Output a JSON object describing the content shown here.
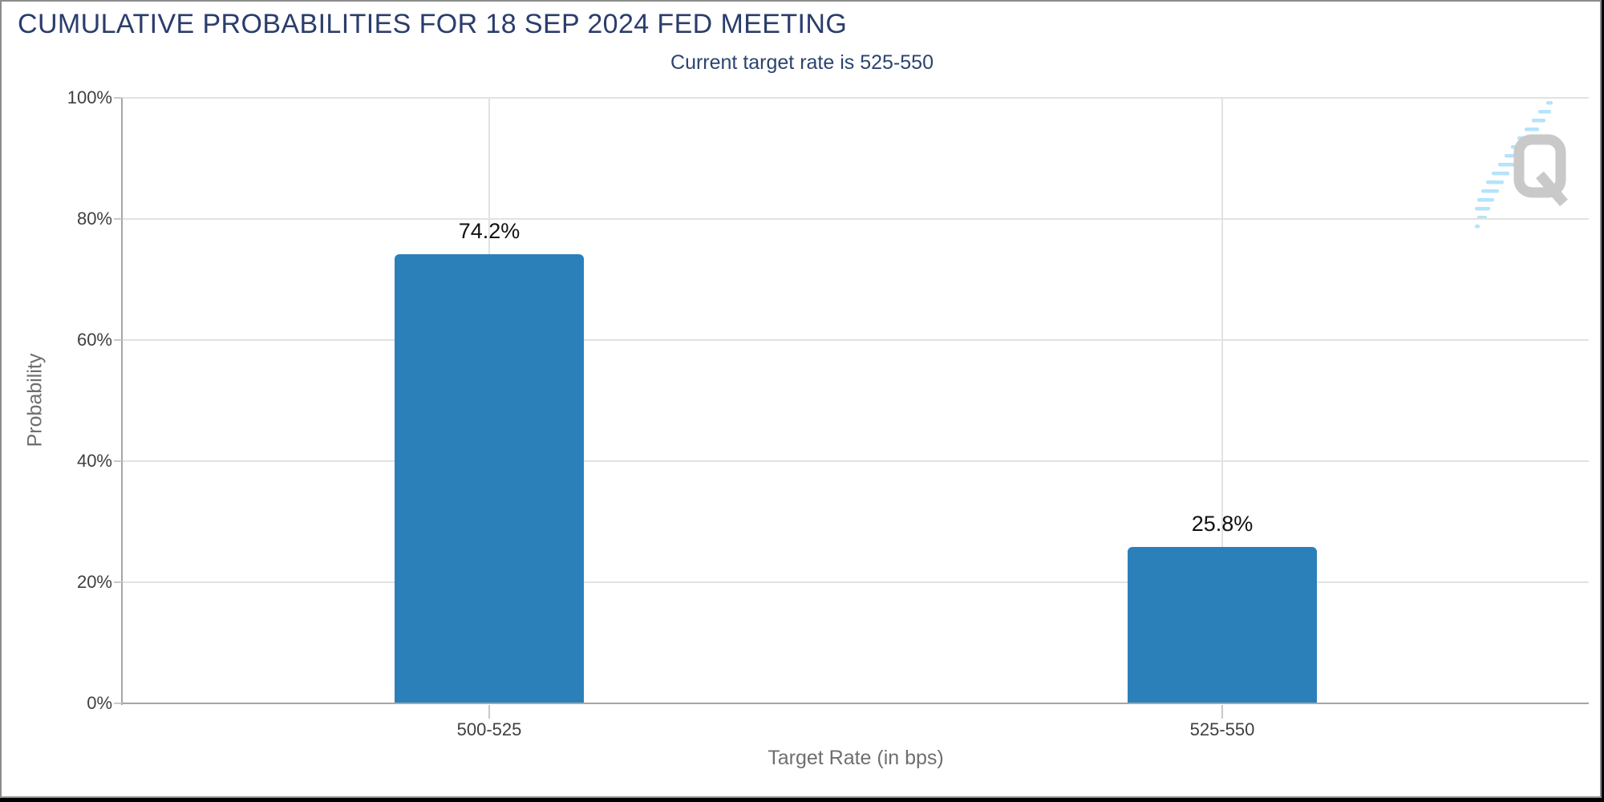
{
  "chart_data": {
    "type": "bar",
    "title": "CUMULATIVE PROBABILITIES FOR 18 SEP 2024 FED MEETING",
    "subtitle": "Current target rate is 525-550",
    "categories": [
      "500-525",
      "525-550"
    ],
    "values": [
      74.2,
      25.8
    ],
    "value_labels": [
      "74.2%",
      "25.8%"
    ],
    "xlabel": "Target Rate (in bps)",
    "ylabel": "Probability",
    "ylim": [
      0,
      100
    ],
    "yticks": [
      "0%",
      "20%",
      "40%",
      "60%",
      "80%",
      "100%"
    ],
    "ytick_values": [
      0,
      20,
      40,
      60,
      80,
      100
    ],
    "grid": true,
    "legend": "none"
  },
  "watermark": {
    "letter": "Q"
  },
  "colors": {
    "title": "#2B3D6C",
    "subtitle": "#2B446F",
    "bar": "#2B80B9",
    "grid": "#E2E2E2",
    "axis": "#A6A6A6",
    "tick_mark": "#C9C9C9",
    "tick_label": "#3F3F3F",
    "axis_title": "#6F6F6F",
    "value_label": "#101010",
    "watermark_gray": "#C9C9C9",
    "watermark_blue": "#B5E3FA"
  }
}
